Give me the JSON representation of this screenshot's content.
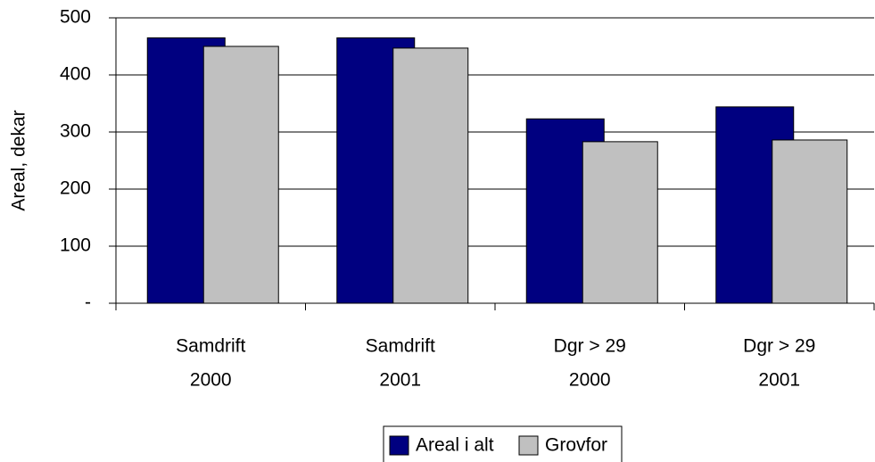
{
  "chart_data": {
    "type": "bar",
    "y_label": "Areal, dekar",
    "categories": [
      [
        "Samdrift",
        "2000"
      ],
      [
        "Samdrift",
        "2001"
      ],
      [
        "Dgr > 29",
        "2000"
      ],
      [
        "Dgr > 29",
        "2001"
      ]
    ],
    "series": [
      {
        "name": "Areal i alt",
        "color": "#000080",
        "values": [
          465,
          465,
          323,
          344
        ]
      },
      {
        "name": "Grovfor",
        "color": "#c0c0c0",
        "values": [
          450,
          447,
          283,
          286
        ]
      }
    ],
    "ylim": [
      0,
      500
    ],
    "yticks": [
      {
        "value": 0,
        "label": "-"
      },
      100,
      200,
      300,
      400,
      500
    ],
    "grid": true,
    "legend": "bottom"
  }
}
